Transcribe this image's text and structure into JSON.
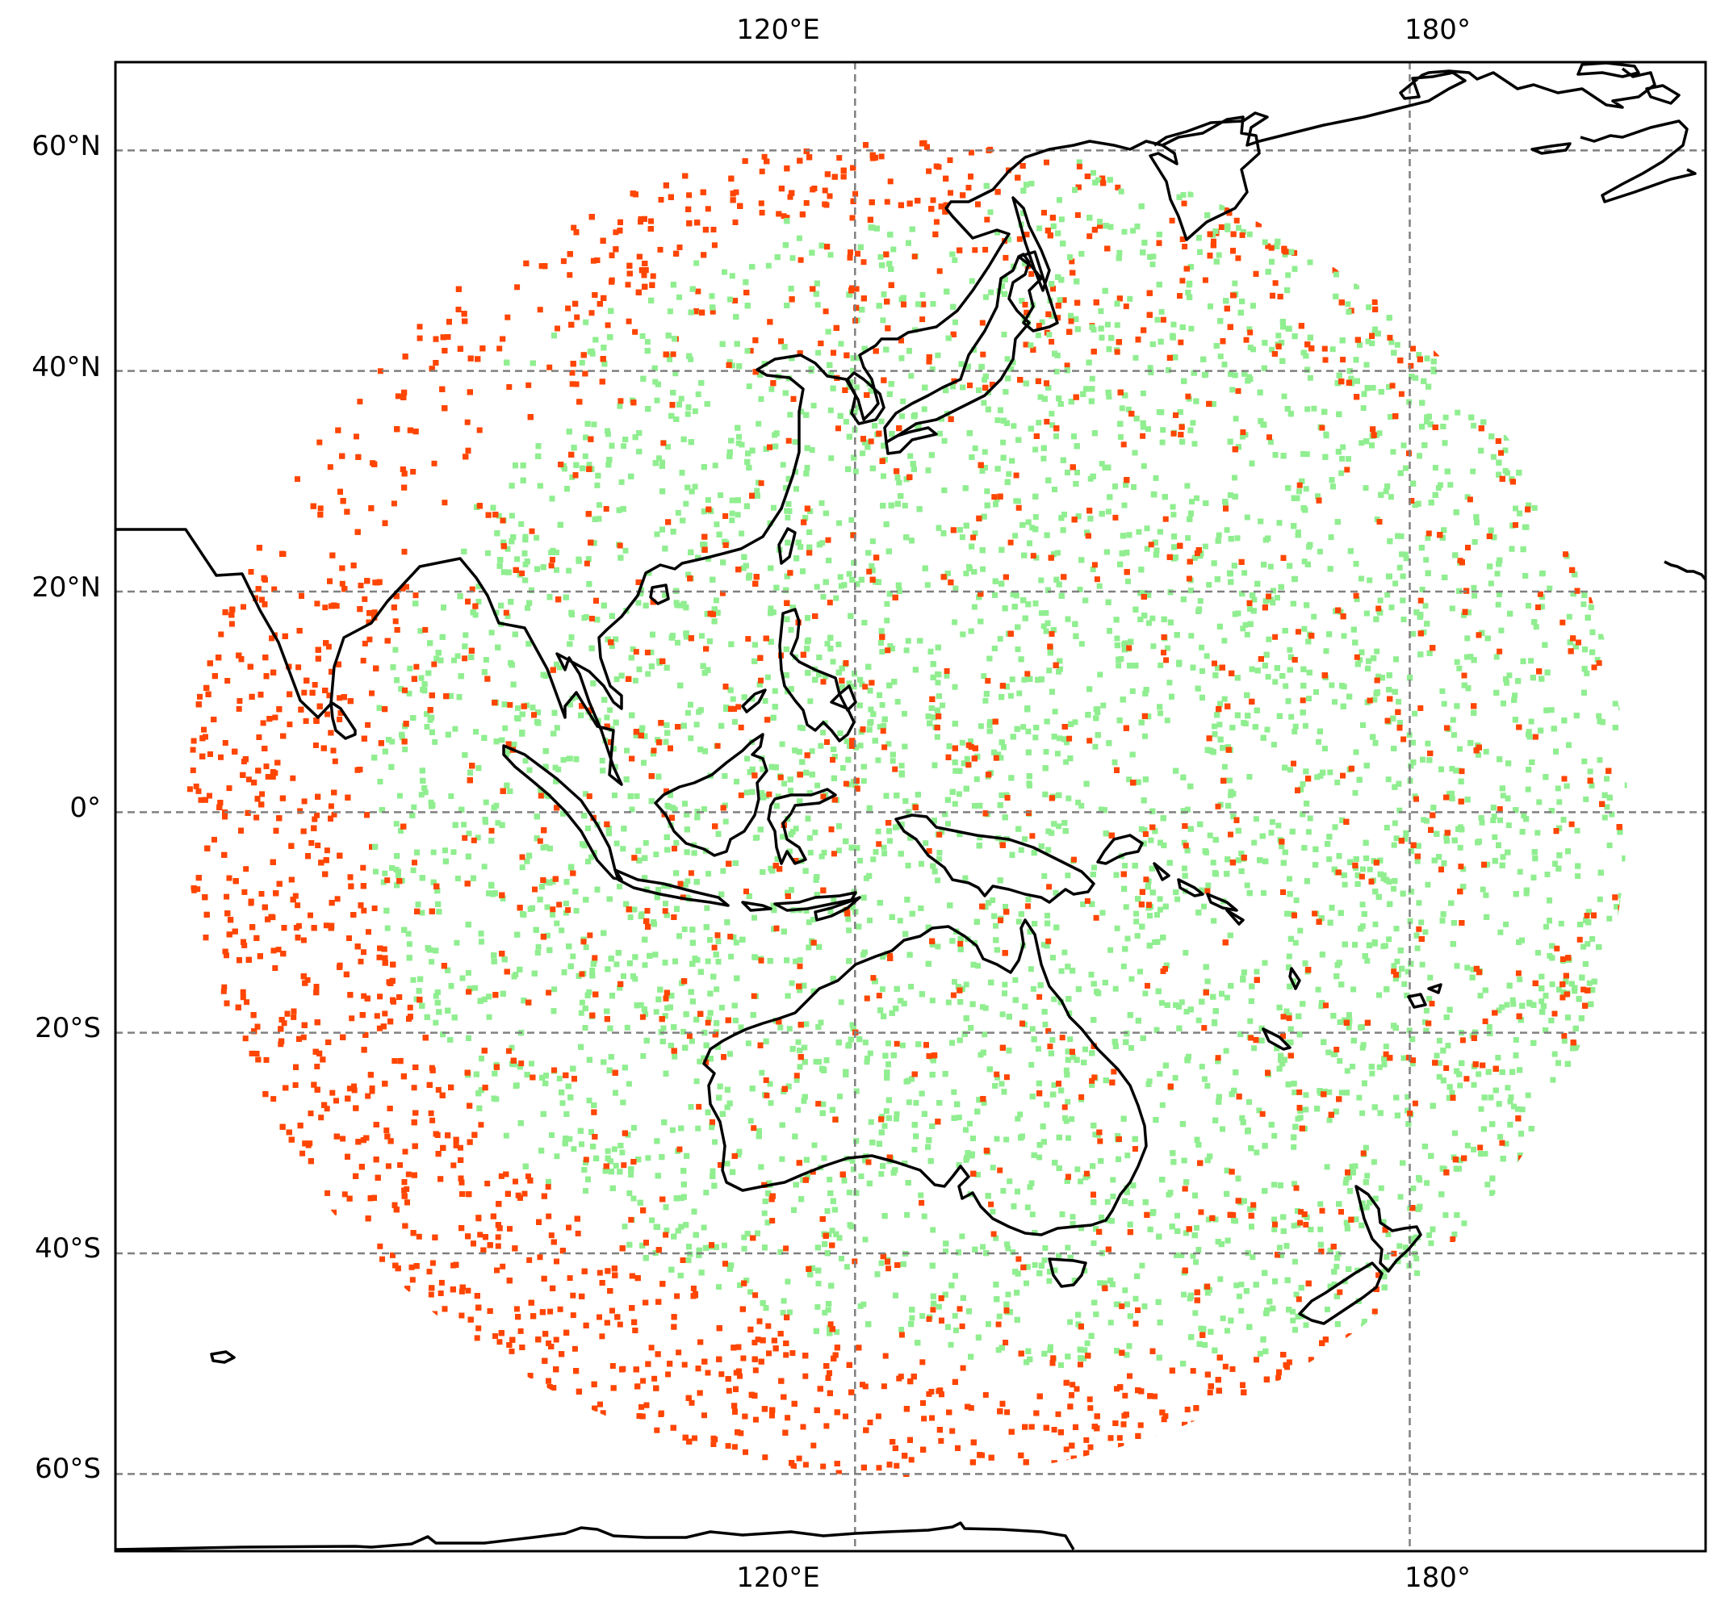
{
  "map": {
    "projection": "geostationary",
    "satellite_longitude": 140,
    "extent": {
      "lon_min": 40,
      "lon_max": 212,
      "lat_min": -67,
      "lat_max": 68
    },
    "gridlines": {
      "lon": [
        120,
        180
      ],
      "lat": [
        60,
        40,
        20,
        0,
        -20,
        -40,
        -60
      ],
      "style": "dashed",
      "color": "#808080"
    },
    "lon_labels": [
      "120°E",
      "180°"
    ],
    "lat_labels": [
      "60°N",
      "40°N",
      "20°N",
      "0°",
      "20°S",
      "40°S",
      "60°S"
    ],
    "coastline_color": "#000000"
  },
  "legend": {
    "series": [
      {
        "color": "#ff4500"
      },
      {
        "color": "#90ee90"
      }
    ]
  }
}
